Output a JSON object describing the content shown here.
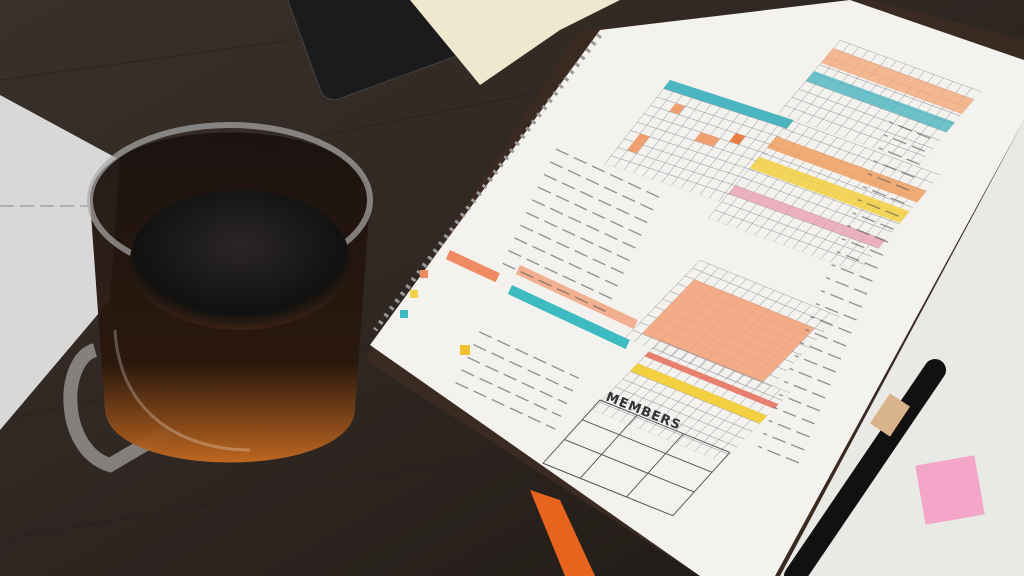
{
  "scene": {
    "section_heading": "MEMBERS"
  }
}
